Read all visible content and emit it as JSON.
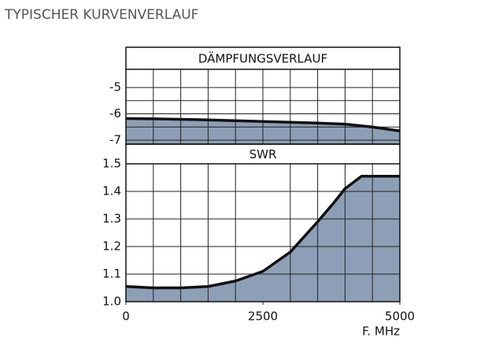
{
  "title": "TYPISCHER KURVENVERLAUF",
  "chart_data": [
    {
      "type": "area",
      "title": "DÄMPFUNGSVERLAUF",
      "x": [
        0,
        500,
        1000,
        1500,
        2000,
        2500,
        3000,
        3500,
        4000,
        4500,
        5000
      ],
      "values": [
        -6.18,
        -6.19,
        -6.21,
        -6.23,
        -6.26,
        -6.29,
        -6.32,
        -6.35,
        -6.39,
        -6.5,
        -6.65
      ],
      "color": "#8d9fb6",
      "xlim": [
        0,
        5000
      ],
      "xgrid": [
        500,
        1000,
        1500,
        2000,
        2500,
        3000,
        3500,
        4000,
        4500
      ],
      "ylim": [
        -7.15,
        -4.31
      ],
      "yticks": [
        -7,
        -6,
        -5
      ],
      "ygrid": [
        -6.5,
        -5.5
      ]
    },
    {
      "type": "area",
      "title": "SWR",
      "x": [
        0,
        500,
        1000,
        1500,
        2000,
        2500,
        3000,
        3500,
        3800,
        4000,
        4300,
        4600,
        5000
      ],
      "values": [
        1.055,
        1.05,
        1.05,
        1.055,
        1.075,
        1.11,
        1.18,
        1.29,
        1.36,
        1.41,
        1.455,
        1.455,
        1.455
      ],
      "color": "#8d9fb6",
      "xlim": [
        0,
        5000
      ],
      "xticks": [
        0,
        2500,
        5000
      ],
      "xgrid": [
        500,
        1000,
        1500,
        2000,
        3000,
        3500,
        4000,
        4500
      ],
      "xlabel": "F. MHz",
      "ylim": [
        1.0,
        1.5
      ],
      "yticks": [
        {
          "value": 1.0,
          "label": "1.0"
        },
        1.1,
        1.2,
        1.3,
        1.4,
        1.5
      ]
    }
  ]
}
